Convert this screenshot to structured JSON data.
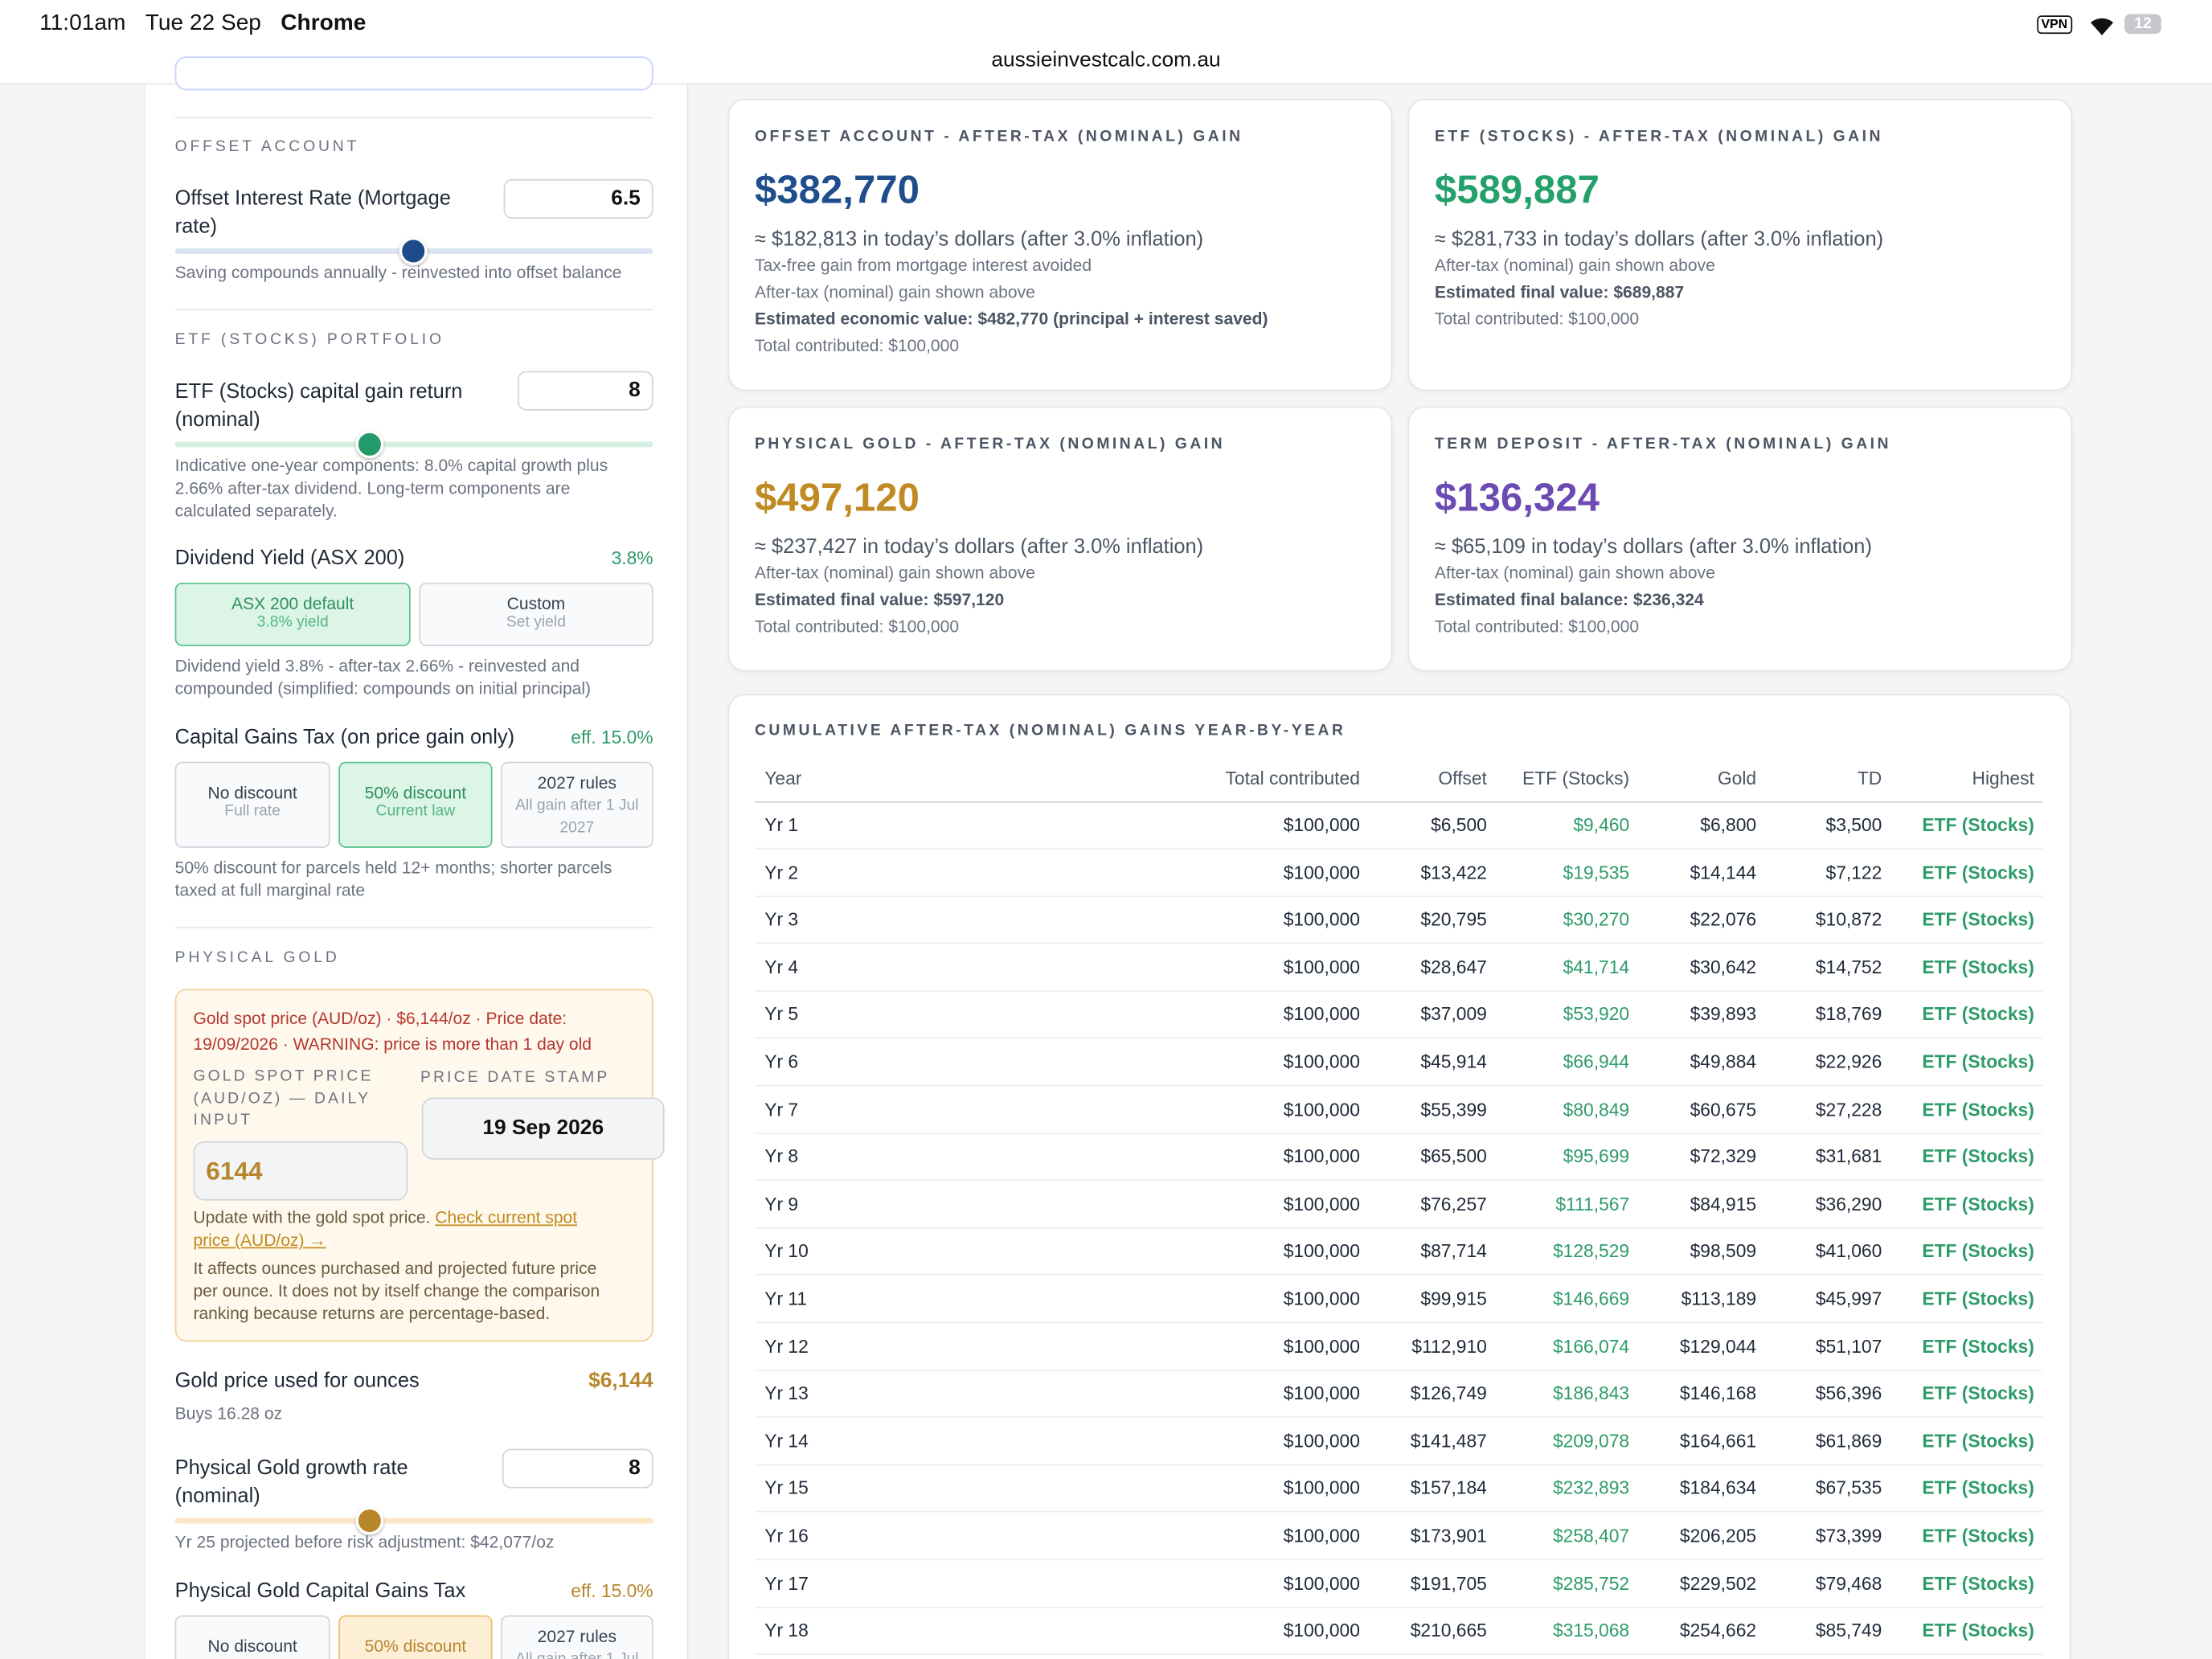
{
  "status_bar": {
    "time": "11:01am",
    "date": "Tue 22 Sep",
    "app": "Chrome",
    "vpn": "VPN",
    "battery": "12"
  },
  "url": "aussieinvestcalc.com.au",
  "sidebar": {
    "offset": {
      "heading": "OFFSET ACCOUNT",
      "label": "Offset Interest Rate (Mortgage rate)",
      "input": "6.5",
      "note": "Saving compounds annually - reinvested into offset balance"
    },
    "etf": {
      "heading": "ETF (STOCKS) PORTFOLIO",
      "label": "ETF (Stocks) capital gain return (nominal)",
      "input": "8",
      "note": "Indicative one-year components: 8.0% capital growth plus 2.66% after-tax dividend. Long-term components are calculated separately.",
      "dividend_label": "Dividend Yield (ASX 200)",
      "dividend_value": "3.8%",
      "dividend_options": [
        {
          "title": "ASX 200 default",
          "sub": "3.8% yield"
        },
        {
          "title": "Custom",
          "sub": "Set yield"
        }
      ],
      "dividend_note": "Dividend yield 3.8% - after-tax 2.66% - reinvested and compounded (simplified: compounds on initial principal)",
      "cgt_label": "Capital Gains Tax (on price gain only)",
      "cgt_value": "eff. 15.0%",
      "cgt_options": [
        {
          "title": "No discount",
          "sub": "Full rate"
        },
        {
          "title": "50% discount",
          "sub": "Current law"
        },
        {
          "title": "2027 rules",
          "sub": "All gain after 1 Jul 2027"
        }
      ],
      "cgt_note": "50% discount for parcels held 12+ months; shorter parcels taxed at full marginal rate"
    },
    "gold": {
      "heading": "PHYSICAL GOLD",
      "warning": "Gold spot price (AUD/oz) · $6,144/oz · Price date: 19/09/2026 · WARNING: price is more than 1 day old",
      "spot_label": "GOLD SPOT PRICE (AUD/OZ) — DAILY INPUT",
      "date_label": "PRICE DATE STAMP",
      "date": "19 Sep 2026",
      "spot_input": "6144",
      "update_text": "Update with the gold spot price. ",
      "update_link": "Check current spot price (AUD/oz) →",
      "affects_note": "It affects ounces purchased and projected future price per ounce. It does not by itself change the comparison ranking because returns are percentage-based.",
      "price_label": "Gold price used for ounces",
      "price_value": "$6,144",
      "ounces": "Buys 16.28 oz",
      "growth_label": "Physical Gold growth rate (nominal)",
      "growth_input": "8",
      "projection": "Yr 25 projected before risk adjustment: $42,077/oz",
      "cgt_label": "Physical Gold Capital Gains Tax",
      "cgt_value": "eff. 15.0%",
      "cgt_options": [
        {
          "title": "No discount"
        },
        {
          "title": "50% discount"
        },
        {
          "title": "2027 rules",
          "sub": "All gain after 1 Jul"
        }
      ]
    }
  },
  "cards": [
    {
      "title": "OFFSET ACCOUNT - AFTER-TAX (NOMINAL) GAIN",
      "amount": "$382,770",
      "real": "≈ $182,813 in today’s dollars (after 3.0% inflation)",
      "lines": [
        "Tax-free gain from mortgage interest avoided",
        "After-tax (nominal) gain shown above",
        "Estimated economic value: $482,770 (principal + interest saved)",
        "Total contributed: $100,000"
      ]
    },
    {
      "title": "ETF (STOCKS) - AFTER-TAX (NOMINAL) GAIN",
      "amount": "$589,887",
      "real": "≈ $281,733 in today’s dollars (after 3.0% inflation)",
      "lines": [
        "After-tax (nominal) gain shown above",
        "Estimated final value: $689,887",
        "Total contributed: $100,000"
      ]
    },
    {
      "title": "PHYSICAL GOLD - AFTER-TAX (NOMINAL) GAIN",
      "amount": "$497,120",
      "real": "≈ $237,427 in today’s dollars (after 3.0% inflation)",
      "lines": [
        "After-tax (nominal) gain shown above",
        "Estimated final value: $597,120",
        "Total contributed: $100,000"
      ]
    },
    {
      "title": "TERM DEPOSIT - AFTER-TAX (NOMINAL) GAIN",
      "amount": "$136,324",
      "real": "≈ $65,109 in today’s dollars (after 3.0% inflation)",
      "lines": [
        "After-tax (nominal) gain shown above",
        "Estimated final balance: $236,324",
        "Total contributed: $100,000"
      ]
    }
  ],
  "table": {
    "title": "CUMULATIVE AFTER-TAX (NOMINAL) GAINS YEAR-BY-YEAR",
    "headers": [
      "Year",
      "Total contributed",
      "Offset",
      "ETF (Stocks)",
      "Gold",
      "TD",
      "Highest"
    ],
    "rows": [
      [
        "Yr 1",
        "$100,000",
        "$6,500",
        "$9,460",
        "$6,800",
        "$3,500",
        "ETF (Stocks)"
      ],
      [
        "Yr 2",
        "$100,000",
        "$13,422",
        "$19,535",
        "$14,144",
        "$7,122",
        "ETF (Stocks)"
      ],
      [
        "Yr 3",
        "$100,000",
        "$20,795",
        "$30,270",
        "$22,076",
        "$10,872",
        "ETF (Stocks)"
      ],
      [
        "Yr 4",
        "$100,000",
        "$28,647",
        "$41,714",
        "$30,642",
        "$14,752",
        "ETF (Stocks)"
      ],
      [
        "Yr 5",
        "$100,000",
        "$37,009",
        "$53,920",
        "$39,893",
        "$18,769",
        "ETF (Stocks)"
      ],
      [
        "Yr 6",
        "$100,000",
        "$45,914",
        "$66,944",
        "$49,884",
        "$22,926",
        "ETF (Stocks)"
      ],
      [
        "Yr 7",
        "$100,000",
        "$55,399",
        "$80,849",
        "$60,675",
        "$27,228",
        "ETF (Stocks)"
      ],
      [
        "Yr 8",
        "$100,000",
        "$65,500",
        "$95,699",
        "$72,329",
        "$31,681",
        "ETF (Stocks)"
      ],
      [
        "Yr 9",
        "$100,000",
        "$76,257",
        "$111,567",
        "$84,915",
        "$36,290",
        "ETF (Stocks)"
      ],
      [
        "Yr 10",
        "$100,000",
        "$87,714",
        "$128,529",
        "$98,509",
        "$41,060",
        "ETF (Stocks)"
      ],
      [
        "Yr 11",
        "$100,000",
        "$99,915",
        "$146,669",
        "$113,189",
        "$45,997",
        "ETF (Stocks)"
      ],
      [
        "Yr 12",
        "$100,000",
        "$112,910",
        "$166,074",
        "$129,044",
        "$51,107",
        "ETF (Stocks)"
      ],
      [
        "Yr 13",
        "$100,000",
        "$126,749",
        "$186,843",
        "$146,168",
        "$56,396",
        "ETF (Stocks)"
      ],
      [
        "Yr 14",
        "$100,000",
        "$141,487",
        "$209,078",
        "$164,661",
        "$61,869",
        "ETF (Stocks)"
      ],
      [
        "Yr 15",
        "$100,000",
        "$157,184",
        "$232,893",
        "$184,634",
        "$67,535",
        "ETF (Stocks)"
      ],
      [
        "Yr 16",
        "$100,000",
        "$173,901",
        "$258,407",
        "$206,205",
        "$73,399",
        "ETF (Stocks)"
      ],
      [
        "Yr 17",
        "$100,000",
        "$191,705",
        "$285,752",
        "$229,502",
        "$79,468",
        "ETF (Stocks)"
      ],
      [
        "Yr 18",
        "$100,000",
        "$210,665",
        "$315,068",
        "$254,662",
        "$85,749",
        "ETF (Stocks)"
      ]
    ]
  }
}
